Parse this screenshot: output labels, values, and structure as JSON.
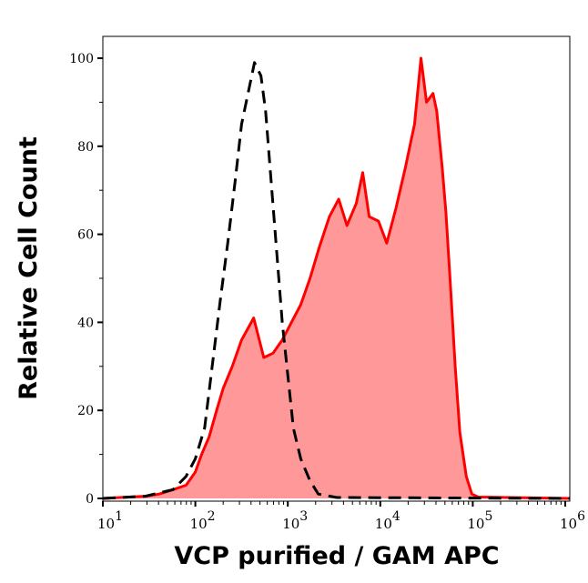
{
  "chart_data": {
    "type": "area",
    "title": "",
    "xlabel": "VCP purified / GAM APC",
    "ylabel": "Relative Cell Count",
    "x_scale": "log",
    "xlim": [
      10,
      1120000
    ],
    "ylim": [
      -0.6,
      105
    ],
    "x_ticks": [
      {
        "base": "10",
        "exp": "1"
      },
      {
        "base": "10",
        "exp": "2"
      },
      {
        "base": "10",
        "exp": "3"
      },
      {
        "base": "10",
        "exp": "4"
      },
      {
        "base": "10",
        "exp": "5"
      },
      {
        "base": "10",
        "exp": "6"
      }
    ],
    "y_ticks": [
      "0",
      "20",
      "40",
      "60",
      "80",
      "100"
    ],
    "grid": false,
    "series": [
      {
        "style": "filled solid",
        "color": "#ff0000",
        "fill": "#ff9999",
        "x": [
          10,
          28.8,
          40.7,
          57.5,
          79.4,
          100,
          117,
          141,
          170,
          200,
          251,
          316,
          427,
          550,
          692,
          871,
          1096,
          1380,
          1738,
          2188,
          2818,
          3548,
          4365,
          5495,
          6457,
          7586,
          9550,
          11750,
          14790,
          18620,
          23440,
          27540,
          31620,
          37150,
          40740,
          46770,
          51290,
          57540,
          64570,
          72440,
          85110,
          97720,
          114800,
          1120000
        ],
        "y": [
          0,
          0.5,
          1,
          2,
          3,
          6,
          10,
          14,
          20,
          25,
          30,
          36,
          41,
          32,
          33,
          36,
          40,
          44,
          50,
          57,
          64,
          68,
          62,
          67,
          74,
          64,
          63,
          58,
          66,
          75,
          85,
          100,
          90,
          92,
          88,
          75,
          65,
          48,
          30,
          15,
          5,
          1,
          0.3,
          0
        ]
      },
      {
        "style": "dashed",
        "color": "#000000",
        "x": [
          10,
          28.8,
          57.5,
          79.4,
          100,
          125.9,
          158.5,
          186.2,
          223.9,
          269.2,
          316.2,
          380.2,
          436.5,
          512.9,
          575.4,
          660.7,
          758.6,
          871,
          1000,
          1148,
          1380,
          1738,
          2138,
          3388,
          1120000
        ],
        "y": [
          0,
          0.5,
          2,
          5,
          9,
          16,
          33,
          45,
          58,
          72,
          85,
          93,
          99,
          96,
          88,
          72,
          56,
          40,
          28,
          16,
          9,
          4,
          1,
          0.2,
          0
        ]
      }
    ]
  }
}
